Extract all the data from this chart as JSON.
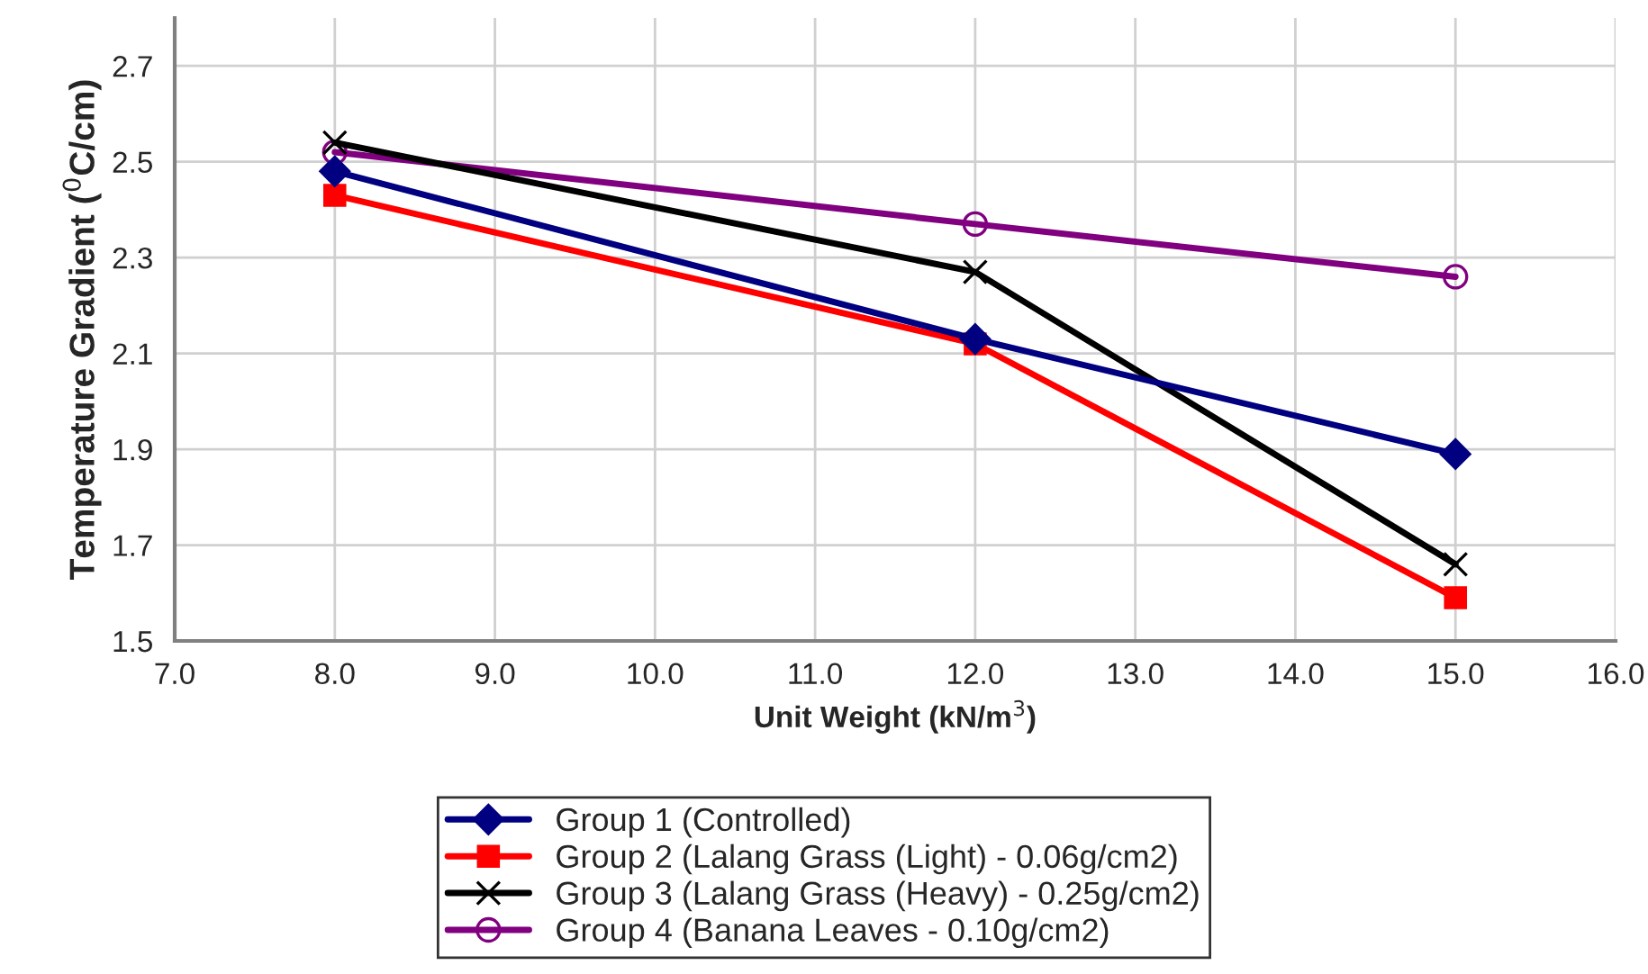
{
  "chart_data": {
    "type": "line",
    "xlabel": "Unit Weight (kN/m$^{3}$)",
    "ylabel": "Temperature Gradient ($^{0}$C/cm)",
    "x": [
      8.0,
      12.0,
      15.0
    ],
    "series": [
      {
        "name": "Group 1 (Controlled)",
        "color": "#000080",
        "marker": "diamond",
        "values": [
          2.48,
          2.13,
          1.89
        ]
      },
      {
        "name": "Group 2 (Lalang Grass (Light) - 0.06g/cm2)",
        "color": "#ff0000",
        "marker": "square",
        "values": [
          2.43,
          2.12,
          1.59
        ]
      },
      {
        "name": "Group 3 (Lalang Grass (Heavy) - 0.25g/cm2)",
        "color": "#000000",
        "marker": "cross",
        "values": [
          2.54,
          2.27,
          1.66
        ]
      },
      {
        "name": "Group 4 (Banana Leaves - 0.10g/cm2)",
        "color": "#800080",
        "marker": "circle",
        "values": [
          2.52,
          2.37,
          2.26
        ]
      }
    ],
    "xlim": [
      7.0,
      16.0
    ],
    "xticks": [
      {
        "value": 7,
        "label": "7.0"
      },
      {
        "value": 8,
        "label": "8.0"
      },
      {
        "value": 9,
        "label": "9.0"
      },
      {
        "value": 10,
        "label": "10.0"
      },
      {
        "value": 11,
        "label": "11.0"
      },
      {
        "value": 12,
        "label": "12.0"
      },
      {
        "value": 13,
        "label": "13.0"
      },
      {
        "value": 14,
        "label": "14.0"
      },
      {
        "value": 15,
        "label": "15.0"
      },
      {
        "value": 16,
        "label": "16.0"
      }
    ],
    "ylim": [
      1.5,
      2.8
    ],
    "yticks": [
      1.5,
      1.7,
      1.9,
      2.1,
      2.3,
      2.5,
      2.7
    ],
    "grid": true,
    "legend": "bottom",
    "line_style": "solid"
  }
}
